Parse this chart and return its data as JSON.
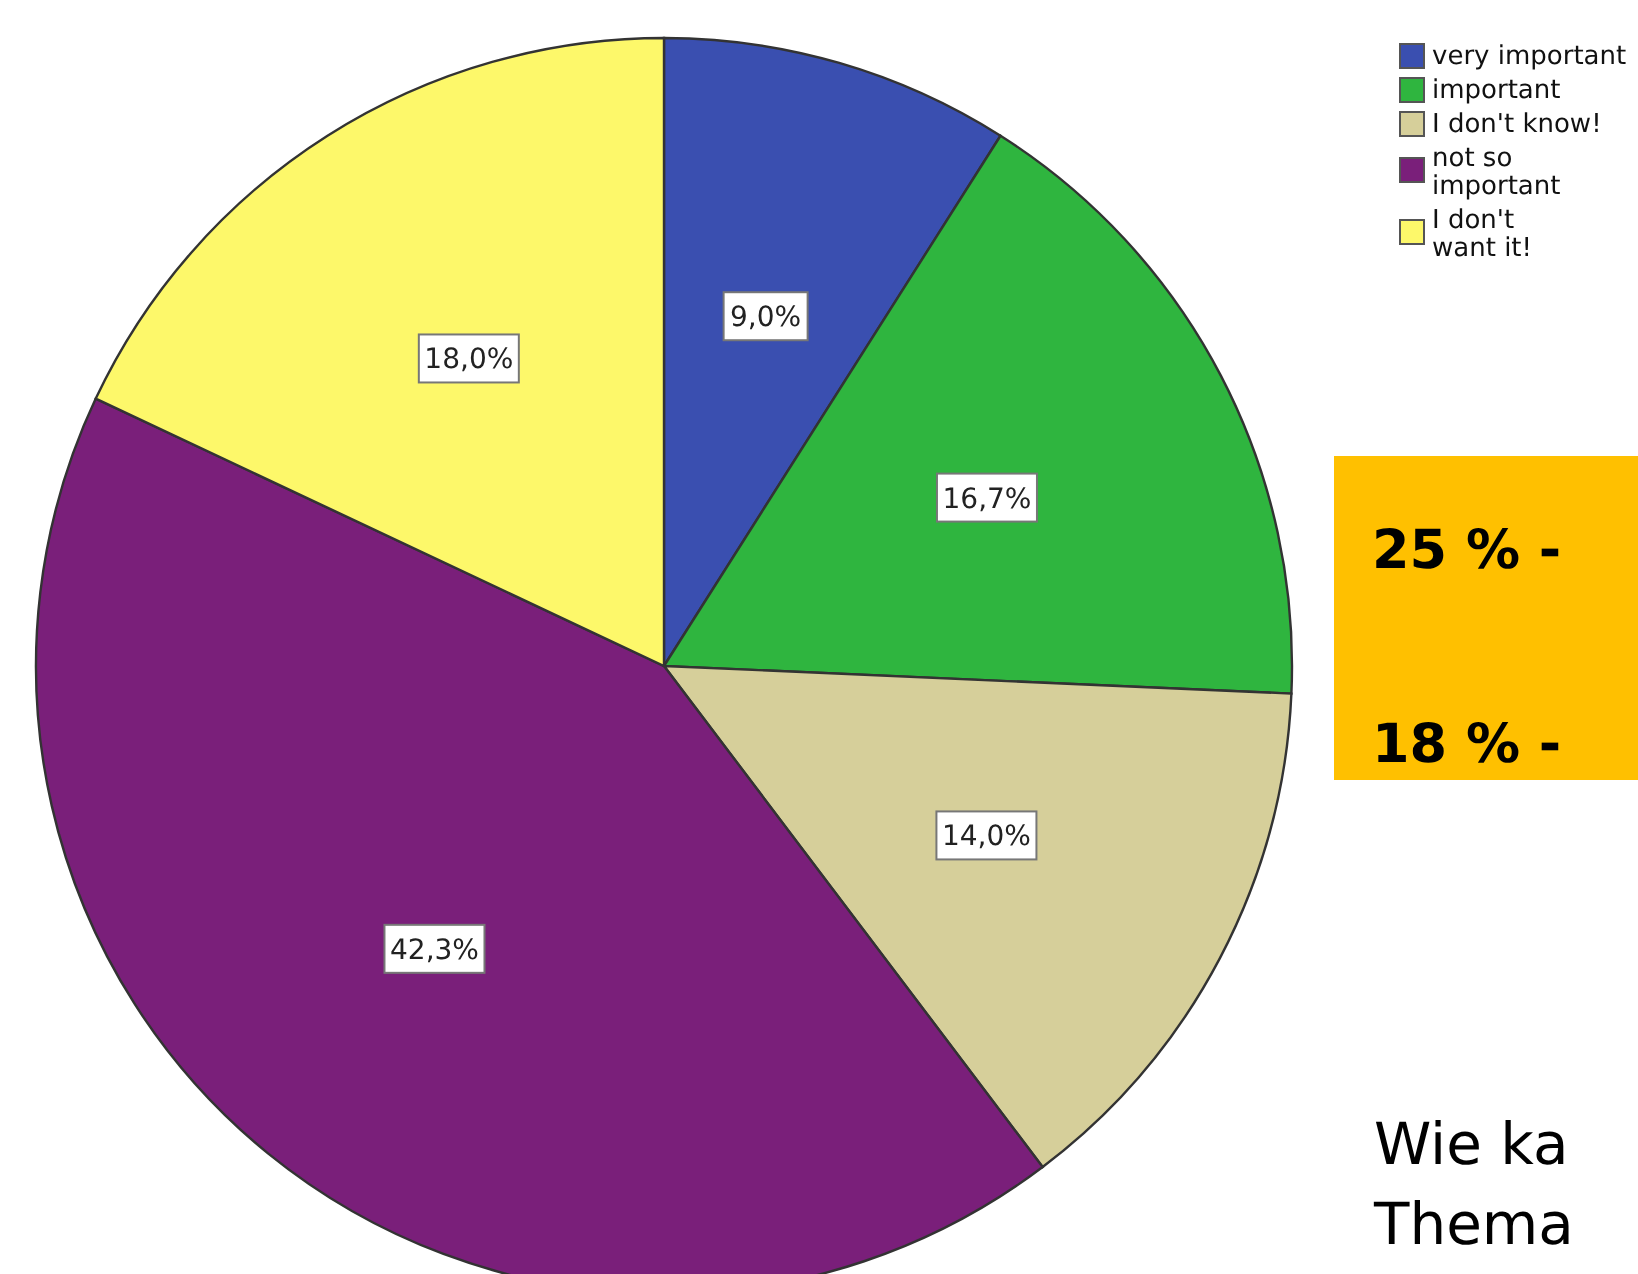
{
  "chart_data": {
    "type": "pie",
    "categories": [
      "very important",
      "important",
      "I don't know!",
      "not so important",
      "I don't want it!"
    ],
    "values": [
      9.0,
      16.7,
      14.0,
      42.3,
      18.0
    ],
    "colors": [
      "#3a4fb0",
      "#2fb53f",
      "#d6cf9a",
      "#7a1f7a",
      "#fdf86a"
    ],
    "value_labels": [
      "9,0%",
      "16,7%",
      "14,0%",
      "42,3%",
      "18,0%"
    ],
    "legend": "top right",
    "annotations": [
      "25 % -",
      "18 % -",
      "Wie ka",
      "Thema"
    ]
  }
}
